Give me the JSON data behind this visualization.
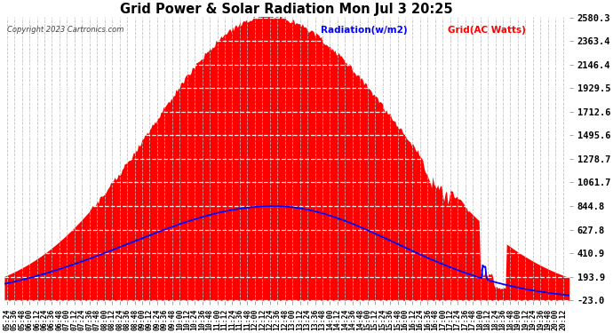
{
  "title": "Grid Power & Solar Radiation Mon Jul 3 20:25",
  "copyright": "Copyright 2023 Cartronics.com",
  "legend_radiation": "Radiation(w/m2)",
  "legend_grid": "Grid(AC Watts)",
  "yticks": [
    2580.3,
    2363.4,
    2146.4,
    1929.5,
    1712.6,
    1495.6,
    1278.7,
    1061.7,
    844.8,
    627.8,
    410.9,
    193.9,
    -23.0
  ],
  "ymin": -23.0,
  "ymax": 2580.3,
  "bg_color": "#ffffff",
  "plot_bg_color": "#ffffff",
  "grid_color": "#bbbbbb",
  "radiation_color": "#ff0000",
  "grid_line_color": "#0000ff",
  "title_color": "#000000",
  "copyright_color": "#000000",
  "radiation_legend_color": "#0000ff",
  "grid_legend_color": "#ff0000"
}
